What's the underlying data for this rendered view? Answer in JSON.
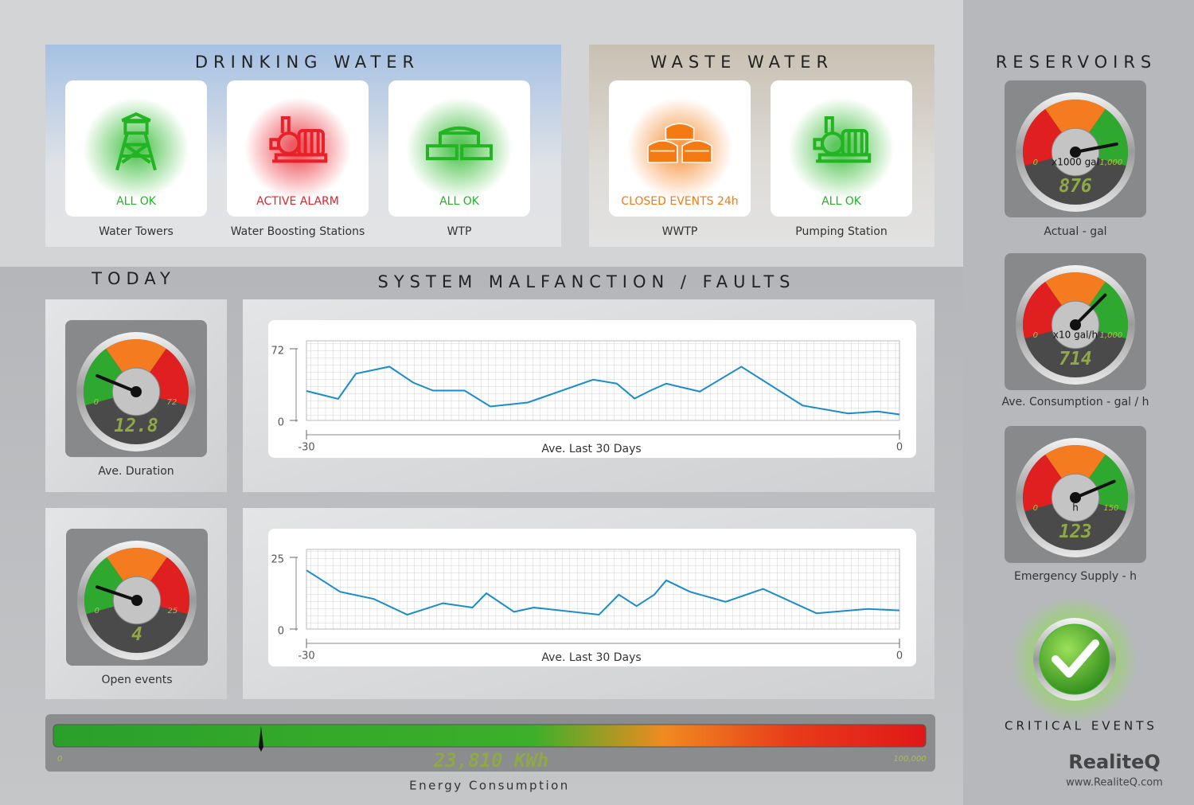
{
  "drinking_water": {
    "title": "DRINKING WATER",
    "tiles": [
      {
        "status": "ALL OK",
        "label": "Water Towers",
        "color": "#22b422"
      },
      {
        "status": "ACTIVE ALARM",
        "label": "Water Boosting Stations",
        "color": "#e8202a"
      },
      {
        "status": "ALL OK",
        "label": "WTP",
        "color": "#22b422"
      }
    ]
  },
  "waste_water": {
    "title": "WASTE WATER",
    "tiles": [
      {
        "status": "CLOSED EVENTS 24h",
        "label": "WWTP",
        "color": "#f47b14"
      },
      {
        "status": "ALL OK",
        "label": "Pumping Station",
        "color": "#22b422"
      }
    ]
  },
  "reservoirs": {
    "title": "RESERVOIRS",
    "zone_colors": [
      "#e02020",
      "#f47b20",
      "#2fa82f"
    ],
    "gauges": [
      {
        "unit": "x1000 gal",
        "min": 0,
        "max": {
          "value": 1000,
          "label": "1,000"
        },
        "value": 876,
        "label": "Actual - gal"
      },
      {
        "unit": "x10 gal/h",
        "min": 0,
        "max": {
          "value": 1000,
          "label": "1,000"
        },
        "value": 714,
        "label": "Ave. Consumption - gal / h"
      },
      {
        "unit": "h",
        "min": 0,
        "max": 150,
        "value": 123,
        "label": "Emergency Supply - h"
      }
    ]
  },
  "today": {
    "title": "TODAY",
    "zone_colors": [
      "#2fa82f",
      "#f47b20",
      "#e02020"
    ],
    "gauges": [
      {
        "min": 0,
        "max": 72,
        "value": 12.8,
        "label": "Ave. Duration"
      },
      {
        "min": 0,
        "max": 25,
        "value": 4,
        "label": "Open events"
      }
    ]
  },
  "faults": {
    "title": "SYSTEM MALFANCTION / FAULTS",
    "charts": [
      {
        "type": "line",
        "x_label": "Ave. Last 30 Days",
        "color": "#1a8ccc",
        "xlim": [
          -30,
          0
        ],
        "xticks": [
          -30,
          0
        ],
        "ylim": [
          0,
          72
        ],
        "yticks": [
          0,
          72
        ],
        "x": [
          -30,
          -28.4,
          -27.5,
          -25.8,
          -24.6,
          -23.6,
          -22,
          -20.7,
          -18.8,
          -15.5,
          -14.3,
          -13.4,
          -12.6,
          -11.8,
          -10.1,
          -8,
          -4.9,
          -2.6,
          -1.1,
          0
        ],
        "values": [
          29.6,
          21.6,
          47,
          54,
          38,
          30,
          30,
          14,
          18,
          41,
          37,
          22,
          30,
          37,
          29,
          54,
          15,
          7,
          9,
          6
        ]
      },
      {
        "type": "line",
        "x_label": "Ave. Last 30 Days",
        "color": "#1a8ccc",
        "xlim": [
          -30,
          0
        ],
        "xticks": [
          -30,
          0
        ],
        "ylim": [
          0,
          25
        ],
        "yticks": [
          0,
          25
        ],
        "x": [
          -30,
          -28.3,
          -26.6,
          -24.9,
          -23.1,
          -21.6,
          -20.9,
          -19.5,
          -18.5,
          -15.2,
          -14.2,
          -13.3,
          -12.4,
          -11.8,
          -10.6,
          -8.8,
          -6.9,
          -4.2,
          -1.6,
          0
        ],
        "values": [
          20.5,
          13,
          10.5,
          5,
          9,
          7.5,
          12.5,
          6,
          7.5,
          5,
          12,
          8,
          12,
          17,
          13,
          9.5,
          14,
          5.5,
          7,
          6.5
        ]
      }
    ]
  },
  "energy": {
    "min": 0,
    "max": {
      "value": 100000,
      "label": "100,000"
    },
    "value": 23810,
    "value_label": "23,810 KWh",
    "label": "Energy Consumption"
  },
  "critical_events": {
    "title": "CRITICAL EVENTS",
    "color": "#3cb82a"
  },
  "brand": {
    "name": "RealiteQ",
    "url": "www.RealiteQ.com"
  }
}
